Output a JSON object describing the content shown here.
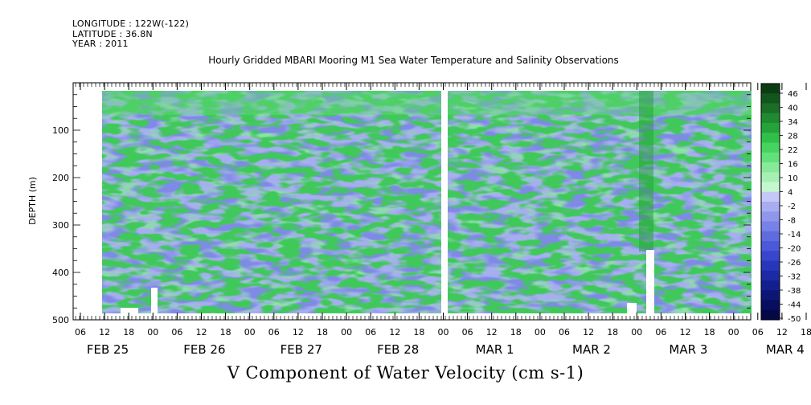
{
  "header": {
    "longitude": "LONGITUDE : 122W(-122)",
    "latitude": "LATITUDE : 36.8N",
    "year": "YEAR : 2011"
  },
  "chart_data": {
    "type": "heatmap",
    "title": "Hourly Gridded MBARI Mooring M1 Sea Water Temperature and Salinity Observations",
    "ylabel": "DEPTH (m)",
    "xlabel": "V Component of Water Velocity (cm s-1)",
    "ylim": [
      500,
      0
    ],
    "yticks": [
      100,
      200,
      300,
      400,
      500
    ],
    "x_hour_labels": [
      "06",
      "12",
      "18",
      "00",
      "06",
      "12",
      "18",
      "00",
      "06",
      "12",
      "18",
      "00",
      "06",
      "12",
      "18",
      "00",
      "06",
      "12",
      "18",
      "00",
      "06",
      "12",
      "18",
      "00",
      "06",
      "12",
      "18",
      "00",
      "06",
      "12",
      "18",
      "00"
    ],
    "x_day_labels": [
      "FEB 25",
      "FEB 26",
      "FEB 27",
      "FEB 28",
      "MAR  1",
      "MAR  2",
      "MAR  3",
      "MAR  4"
    ],
    "colorbar_levels": [
      "46",
      "40",
      "34",
      "28",
      "22",
      "16",
      "10",
      "4",
      "-2",
      "-8",
      "-14",
      "-20",
      "-26",
      "-32",
      "-38",
      "-44",
      "-50"
    ],
    "colorbar_colors": [
      "#0b3d14",
      "#13561d",
      "#1a6e27",
      "#1f8a31",
      "#24a33b",
      "#30bf48",
      "#46d360",
      "#63e07a",
      "#86ea98",
      "#a6f0b4",
      "#c4f7cf",
      "#c5c8f7",
      "#a8adf0",
      "#8f96ec",
      "#7781e6",
      "#5f6ce0",
      "#4b59d8",
      "#3746cc",
      "#2836bb",
      "#1d2aa6",
      "#141f8f",
      "#0d1677",
      "#080e5e",
      "#040847"
    ],
    "dominant_colors": {
      "positive": "#86ea98",
      "negative": "#a6adf0"
    }
  }
}
